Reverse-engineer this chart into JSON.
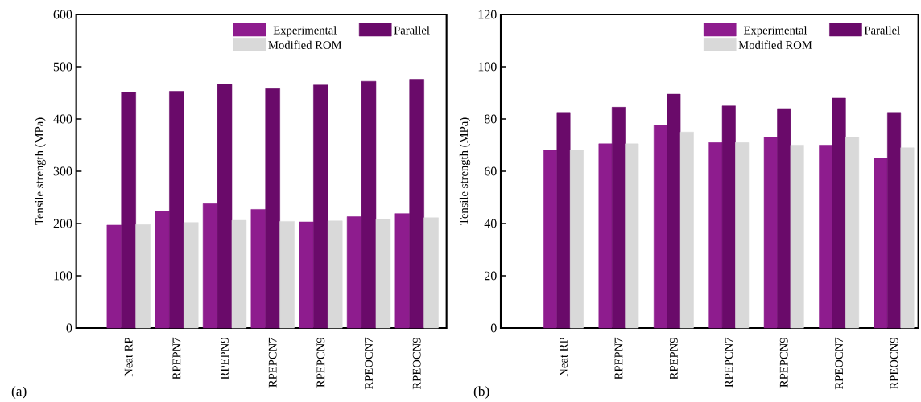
{
  "chart_data": [
    {
      "type": "bar",
      "ylabel": "Tensile strength (MPa)",
      "categories": [
        "Neat RP",
        "RPEPN7",
        "RPEPN9",
        "RPEPCN7",
        "RPEPCN9",
        "RPEOCN7",
        "RPEOCN9"
      ],
      "series": [
        {
          "name": "Experimental",
          "color": "#8e1c8e",
          "values": [
            197,
            223,
            238,
            227,
            203,
            213,
            219
          ]
        },
        {
          "name": "Parallel",
          "color": "#6a0a6a",
          "values": [
            451,
            453,
            466,
            458,
            465,
            472,
            476
          ]
        },
        {
          "name": "Modified ROM",
          "color": "#d9d9d9",
          "values": [
            198,
            202,
            206,
            204,
            205,
            208,
            211
          ]
        }
      ],
      "ylim": [
        0,
        600
      ],
      "yticks": [
        0,
        100,
        200,
        300,
        400,
        500,
        600
      ],
      "legend": "top right",
      "annotations": [
        "(a)"
      ]
    },
    {
      "type": "bar",
      "ylabel": "Tensile strength (MPa)",
      "categories": [
        "Neat RP",
        "RPEPN7",
        "RPEPN9",
        "RPEPCN7",
        "RPEPCN9",
        "RPEOCN7",
        "RPEOCN9"
      ],
      "series": [
        {
          "name": "Experimental",
          "color": "#8e1c8e",
          "values": [
            68,
            70.5,
            77.5,
            71,
            73,
            70,
            65
          ]
        },
        {
          "name": "Parallel",
          "color": "#6a0a6a",
          "values": [
            82.5,
            84.5,
            89.5,
            85,
            84,
            88,
            82.5
          ]
        },
        {
          "name": "Modified ROM",
          "color": "#d9d9d9",
          "values": [
            68,
            70.5,
            75,
            71,
            70,
            73,
            69
          ]
        }
      ],
      "ylim": [
        0,
        120
      ],
      "yticks": [
        0,
        20,
        40,
        60,
        80,
        100,
        120
      ],
      "legend": "top right",
      "annotations": [
        "(b)"
      ]
    }
  ]
}
